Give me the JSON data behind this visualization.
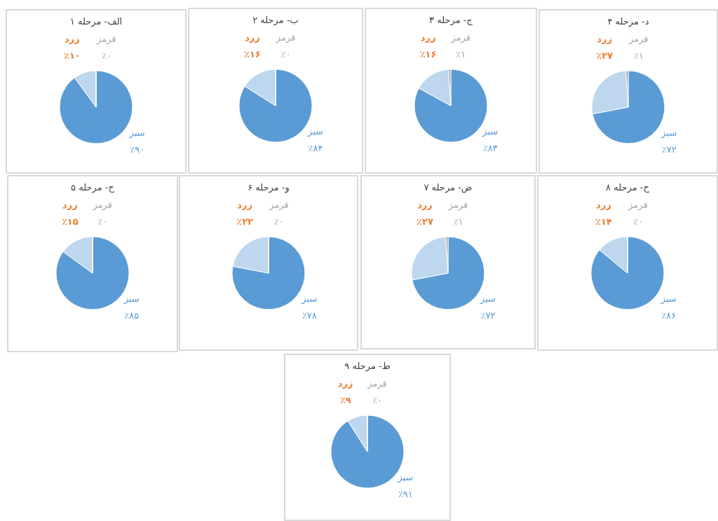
{
  "chart_data": [
    {
      "type": "pie",
      "title": "الف- مرحله ۱",
      "categories": [
        "سبز",
        "زرد",
        "قرمز"
      ],
      "values": [
        90,
        10,
        0
      ],
      "value_labels": [
        "٪۹۰",
        "٪۱۰",
        "٪۰"
      ],
      "colors": [
        "#5b9bd5",
        "#bdd7ee",
        "#a5a5a5"
      ]
    },
    {
      "type": "pie",
      "title": "ب- مرحله ۲",
      "categories": [
        "سبز",
        "زرد",
        "قرمز"
      ],
      "values": [
        84,
        16,
        0
      ],
      "value_labels": [
        "٪۸۴",
        "٪۱۶",
        "٪۰"
      ],
      "colors": [
        "#5b9bd5",
        "#bdd7ee",
        "#a5a5a5"
      ]
    },
    {
      "type": "pie",
      "title": "ج- مرحله ۳",
      "categories": [
        "سبز",
        "زرد",
        "قرمز"
      ],
      "values": [
        83,
        16,
        1
      ],
      "value_labels": [
        "٪۸۳",
        "٪۱۶",
        "٪۱"
      ],
      "colors": [
        "#5b9bd5",
        "#bdd7ee",
        "#a5a5a5"
      ]
    },
    {
      "type": "pie",
      "title": "د- مرحله ۴",
      "categories": [
        "سبز",
        "زرد",
        "قرمز"
      ],
      "values": [
        72,
        27,
        1
      ],
      "value_labels": [
        "٪۷۲",
        "٪۲۷",
        "٪۱"
      ],
      "colors": [
        "#5b9bd5",
        "#bdd7ee",
        "#a5a5a5"
      ]
    },
    {
      "type": "pie",
      "title": "ح- مرحله ۵",
      "categories": [
        "سبز",
        "زرد",
        "قرمز"
      ],
      "values": [
        85,
        15,
        0
      ],
      "value_labels": [
        "٪۸۵",
        "٪۱۵",
        "٪۰"
      ],
      "colors": [
        "#5b9bd5",
        "#bdd7ee",
        "#a5a5a5"
      ]
    },
    {
      "type": "pie",
      "title": "و- مرحله ۶",
      "categories": [
        "سبز",
        "زرد",
        "قرمز"
      ],
      "values": [
        78,
        22,
        0
      ],
      "value_labels": [
        "٪۷۸",
        "٪۲۲",
        "٪۰"
      ],
      "colors": [
        "#5b9bd5",
        "#bdd7ee",
        "#a5a5a5"
      ]
    },
    {
      "type": "pie",
      "title": "ض- مرحله ۷",
      "categories": [
        "سبز",
        "زرد",
        "قرمز"
      ],
      "values": [
        72,
        27,
        1
      ],
      "value_labels": [
        "٪۷۲",
        "٪۲۷",
        "٪۱"
      ],
      "colors": [
        "#5b9bd5",
        "#bdd7ee",
        "#a5a5a5"
      ]
    },
    {
      "type": "pie",
      "title": "ح- مرحله ۸",
      "categories": [
        "سبز",
        "زرد",
        "قرمز"
      ],
      "values": [
        86,
        14,
        0
      ],
      "value_labels": [
        "٪۸۶",
        "٪۱۴",
        "٪۰"
      ],
      "colors": [
        "#5b9bd5",
        "#bdd7ee",
        "#a5a5a5"
      ]
    },
    {
      "type": "pie",
      "title": "ط- مرحله ۹",
      "categories": [
        "سبز",
        "زرد",
        "قرمز"
      ],
      "values": [
        91,
        9,
        0
      ],
      "value_labels": [
        "٪۹۱",
        "٪۹",
        "٪۰"
      ],
      "colors": [
        "#5b9bd5",
        "#bdd7ee",
        "#a5a5a5"
      ]
    }
  ]
}
